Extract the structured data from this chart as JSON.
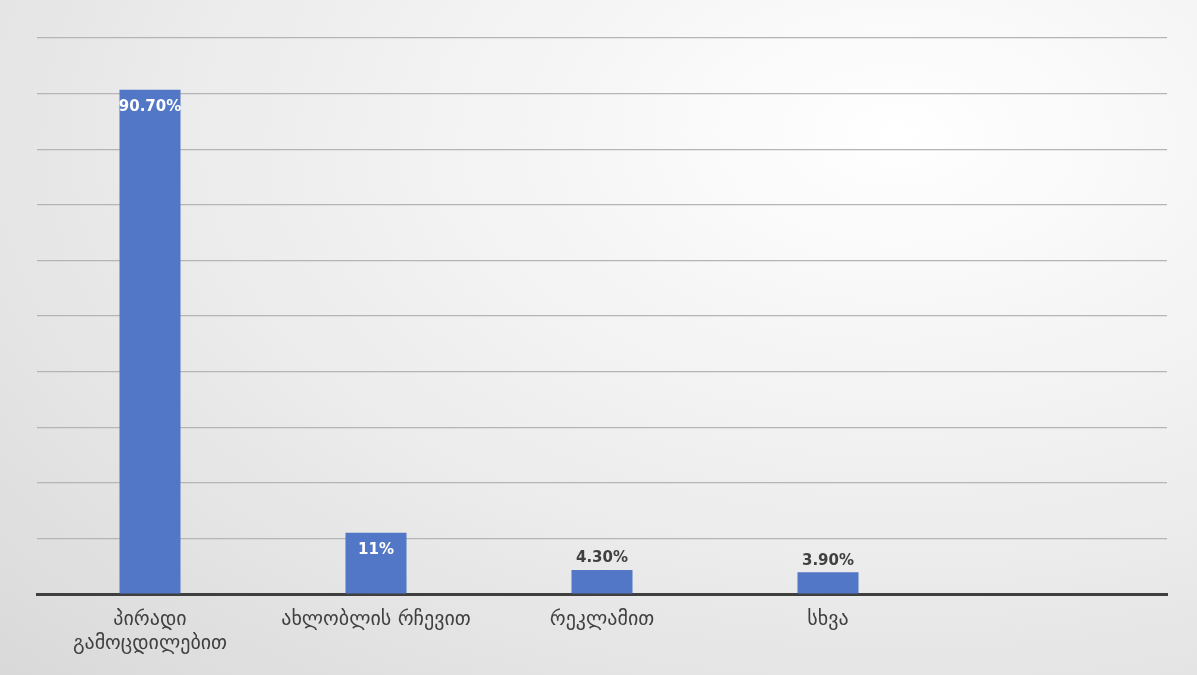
{
  "chart_data": {
    "type": "bar",
    "categories": [
      "პირადი გამოცდილებით",
      "ახლობლის რჩევით",
      "რეკლამით",
      "სხვა",
      null
    ],
    "values": [
      90.7,
      11,
      4.3,
      3.9,
      null
    ],
    "value_labels": [
      "90.70%",
      "11%",
      "4.30%",
      "3.90%",
      null
    ],
    "color": "#5277c6",
    "ylim": [
      0,
      100
    ],
    "yticks": [
      {
        "value": 0,
        "label": null
      },
      {
        "value": 10,
        "label": null
      },
      {
        "value": 20,
        "label": null
      },
      {
        "value": 30,
        "label": null
      },
      {
        "value": 40,
        "label": null
      },
      {
        "value": 50,
        "label": null
      },
      {
        "value": 60,
        "label": null
      },
      {
        "value": 70,
        "label": null
      },
      {
        "value": 80,
        "label": null
      },
      {
        "value": 90,
        "label": null
      },
      {
        "value": 100,
        "label": null
      }
    ],
    "grid": "y",
    "tick_labels": "x",
    "legend": false
  }
}
